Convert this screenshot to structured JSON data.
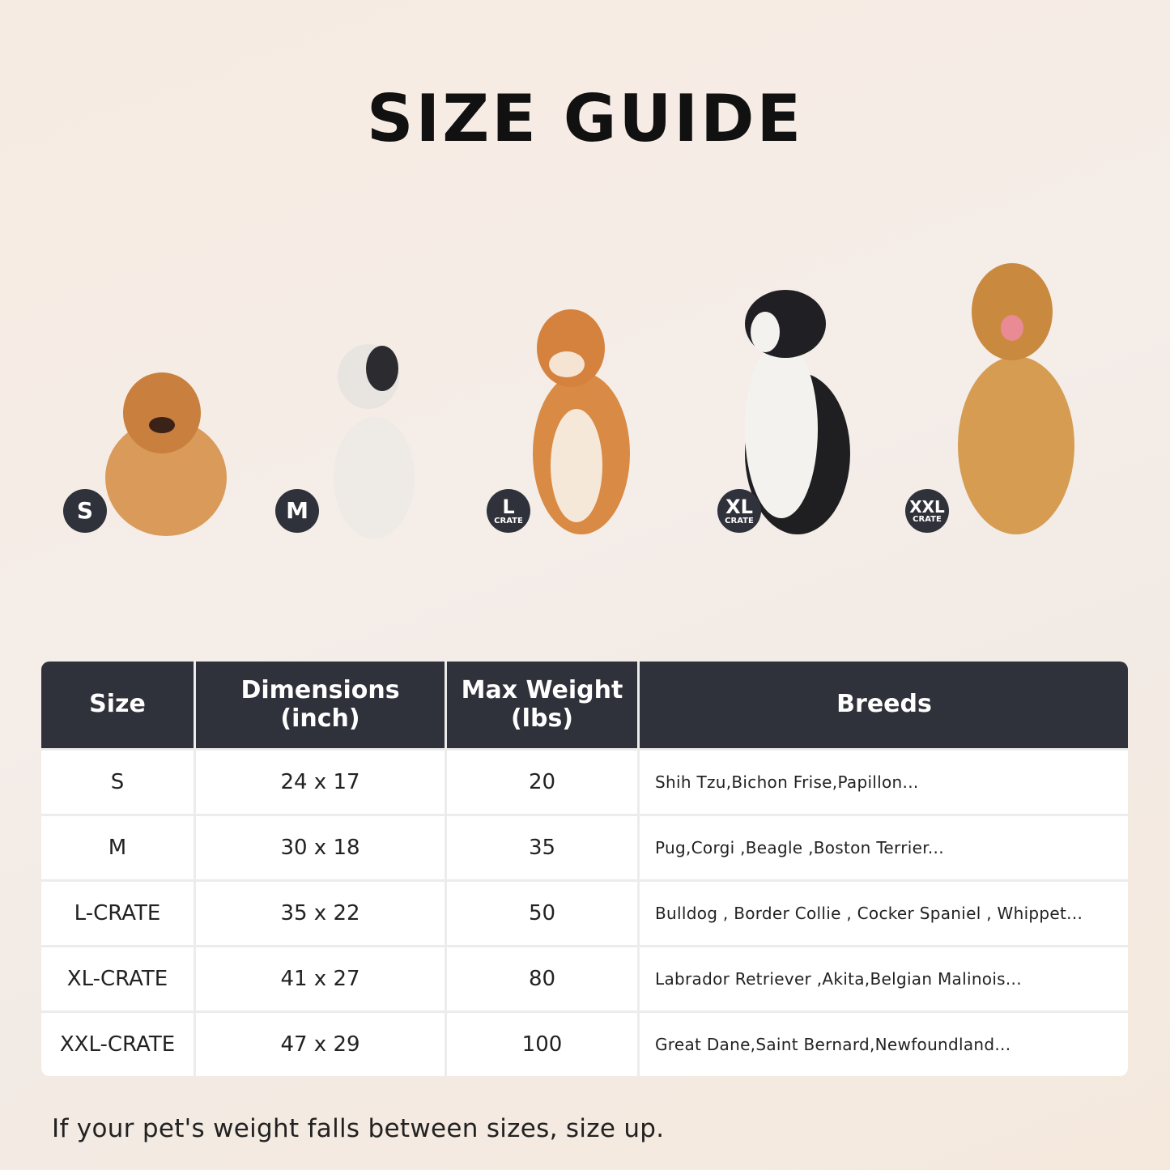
{
  "title": "SIZE GUIDE",
  "badges": [
    {
      "size": "S",
      "sub": ""
    },
    {
      "size": "M",
      "sub": ""
    },
    {
      "size": "L",
      "sub": "CRATE"
    },
    {
      "size": "XL",
      "sub": "CRATE"
    },
    {
      "size": "XXL",
      "sub": "CRATE"
    }
  ],
  "table": {
    "headers": [
      "Size",
      "Dimensions (inch)",
      "Max Weight (lbs)",
      "Breeds"
    ],
    "rows": [
      [
        "S",
        "24 x 17",
        "20",
        "Shih Tzu,Bichon Frise,Papillon..."
      ],
      [
        "M",
        "30 x 18",
        "35",
        "Pug,Corgi ,Beagle ,Boston Terrier..."
      ],
      [
        "L-CRATE",
        "35 x 22",
        "50",
        "Bulldog , Border Collie , Cocker Spaniel , Whippet..."
      ],
      [
        "XL-CRATE",
        "41 x 27",
        "80",
        "Labrador Retriever ,Akita,Belgian Malinois..."
      ],
      [
        "XXL-CRATE",
        "47 x 29",
        "100",
        "Great Dane,Saint Bernard,Newfoundland..."
      ]
    ]
  },
  "footer": "If your pet's weight falls between sizes, size up.",
  "colors": {
    "header": "#30323b",
    "badge": "#30323b"
  }
}
